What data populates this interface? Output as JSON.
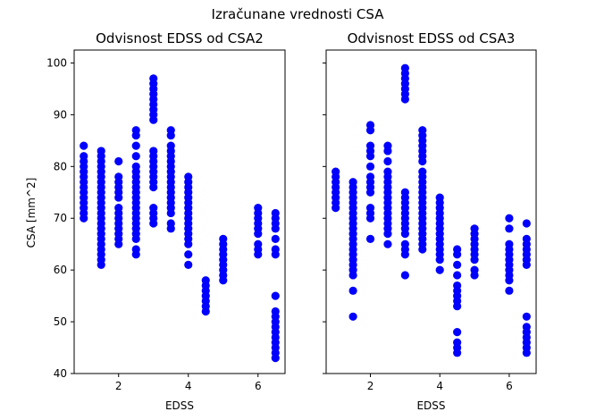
{
  "figure": {
    "suptitle": "Izračunane vrednosti CSA",
    "point_color": "#0000ff",
    "ylabel": "CSA [mm^2]"
  },
  "chart_data": [
    {
      "type": "scatter",
      "title": "Odvisnost EDSS od CSA2",
      "xlabel": "EDSS",
      "ylabel": "CSA [mm^2]",
      "xlim": [
        0.725,
        6.775
      ],
      "ylim": [
        40,
        102.5
      ],
      "xticks": [
        2,
        4,
        6
      ],
      "yticks": [
        40,
        50,
        60,
        70,
        80,
        90,
        100
      ],
      "grid": false,
      "series": [
        {
          "points": [
            {
              "x": 1.0,
              "y": [
                70,
                71,
                72,
                73,
                74,
                75,
                76,
                77,
                78,
                79,
                80,
                81,
                82,
                84
              ]
            },
            {
              "x": 1.5,
              "y": [
                61,
                62,
                63,
                64,
                65,
                66,
                67,
                68,
                69,
                70,
                71,
                72,
                73,
                74,
                75,
                76,
                77,
                78,
                79,
                80,
                81,
                82,
                83
              ]
            },
            {
              "x": 2.0,
              "y": [
                65,
                66,
                67,
                68,
                69,
                70,
                71,
                72,
                74,
                75,
                76,
                77,
                78,
                81
              ]
            },
            {
              "x": 2.5,
              "y": [
                63,
                64,
                66,
                67,
                68,
                69,
                70,
                71,
                72,
                73,
                74,
                75,
                76,
                77,
                78,
                79,
                80,
                82,
                84,
                86,
                87
              ]
            },
            {
              "x": 3.0,
              "y": [
                69,
                70,
                71,
                72,
                76,
                77,
                78,
                79,
                80,
                81,
                82,
                83,
                89,
                90,
                91,
                92,
                93,
                94,
                95,
                96,
                97
              ]
            },
            {
              "x": 3.5,
              "y": [
                68,
                69,
                71,
                72,
                73,
                74,
                75,
                76,
                77,
                78,
                79,
                80,
                81,
                82,
                83,
                84,
                86,
                87
              ]
            },
            {
              "x": 4.0,
              "y": [
                61,
                63,
                65,
                66,
                67,
                68,
                69,
                70,
                71,
                72,
                73,
                74,
                75,
                76,
                77,
                78
              ]
            },
            {
              "x": 4.5,
              "y": [
                52,
                53,
                54,
                55,
                56,
                57,
                58
              ]
            },
            {
              "x": 5.0,
              "y": [
                58,
                59,
                60,
                61,
                62,
                63,
                64,
                65,
                66
              ]
            },
            {
              "x": 6.0,
              "y": [
                63,
                64,
                65,
                67,
                68,
                69,
                70,
                71,
                72
              ]
            },
            {
              "x": 6.5,
              "y": [
                43,
                44,
                45,
                46,
                47,
                48,
                49,
                50,
                51,
                52,
                55,
                63,
                64,
                66,
                68,
                69,
                70,
                71
              ]
            }
          ]
        }
      ]
    },
    {
      "type": "scatter",
      "title": "Odvisnost EDSS od CSA3",
      "xlabel": "EDSS",
      "ylabel": "",
      "xlim": [
        0.725,
        6.775
      ],
      "ylim": [
        40,
        102.5
      ],
      "xticks": [
        2,
        4,
        6
      ],
      "yticks": [
        40,
        50,
        60,
        70,
        80,
        90,
        100
      ],
      "grid": false,
      "series": [
        {
          "points": [
            {
              "x": 1.0,
              "y": [
                72,
                73,
                74,
                75,
                76,
                77,
                78,
                79
              ]
            },
            {
              "x": 1.5,
              "y": [
                51,
                56,
                59,
                60,
                61,
                62,
                63,
                64,
                65,
                66,
                67,
                68,
                69,
                70,
                71,
                72,
                73,
                74,
                75,
                76,
                77
              ]
            },
            {
              "x": 2.0,
              "y": [
                66,
                70,
                71,
                72,
                75,
                76,
                77,
                78,
                80,
                82,
                83,
                84,
                87,
                88
              ]
            },
            {
              "x": 2.5,
              "y": [
                65,
                67,
                68,
                69,
                70,
                71,
                72,
                73,
                74,
                75,
                76,
                77,
                78,
                79,
                81,
                83,
                84
              ]
            },
            {
              "x": 3.0,
              "y": [
                59,
                63,
                64,
                65,
                67,
                68,
                69,
                70,
                71,
                72,
                73,
                74,
                75,
                93,
                94,
                95,
                96,
                97,
                98,
                99
              ]
            },
            {
              "x": 3.5,
              "y": [
                64,
                65,
                66,
                67,
                68,
                69,
                70,
                71,
                72,
                73,
                74,
                75,
                76,
                77,
                78,
                79,
                81,
                82,
                83,
                84,
                85,
                86,
                87
              ]
            },
            {
              "x": 4.0,
              "y": [
                60,
                62,
                63,
                64,
                65,
                66,
                67,
                68,
                69,
                70,
                71,
                72,
                73,
                74
              ]
            },
            {
              "x": 4.5,
              "y": [
                44,
                45,
                46,
                48,
                53,
                54,
                55,
                56,
                57,
                59,
                61,
                63,
                64
              ]
            },
            {
              "x": 5.0,
              "y": [
                59,
                60,
                62,
                63,
                64,
                65,
                66,
                67,
                68
              ]
            },
            {
              "x": 6.0,
              "y": [
                56,
                58,
                59,
                60,
                61,
                62,
                63,
                64,
                65,
                68,
                70
              ]
            },
            {
              "x": 6.5,
              "y": [
                44,
                45,
                46,
                47,
                48,
                49,
                51,
                61,
                62,
                63,
                64,
                65,
                66,
                69
              ]
            }
          ]
        }
      ]
    }
  ]
}
